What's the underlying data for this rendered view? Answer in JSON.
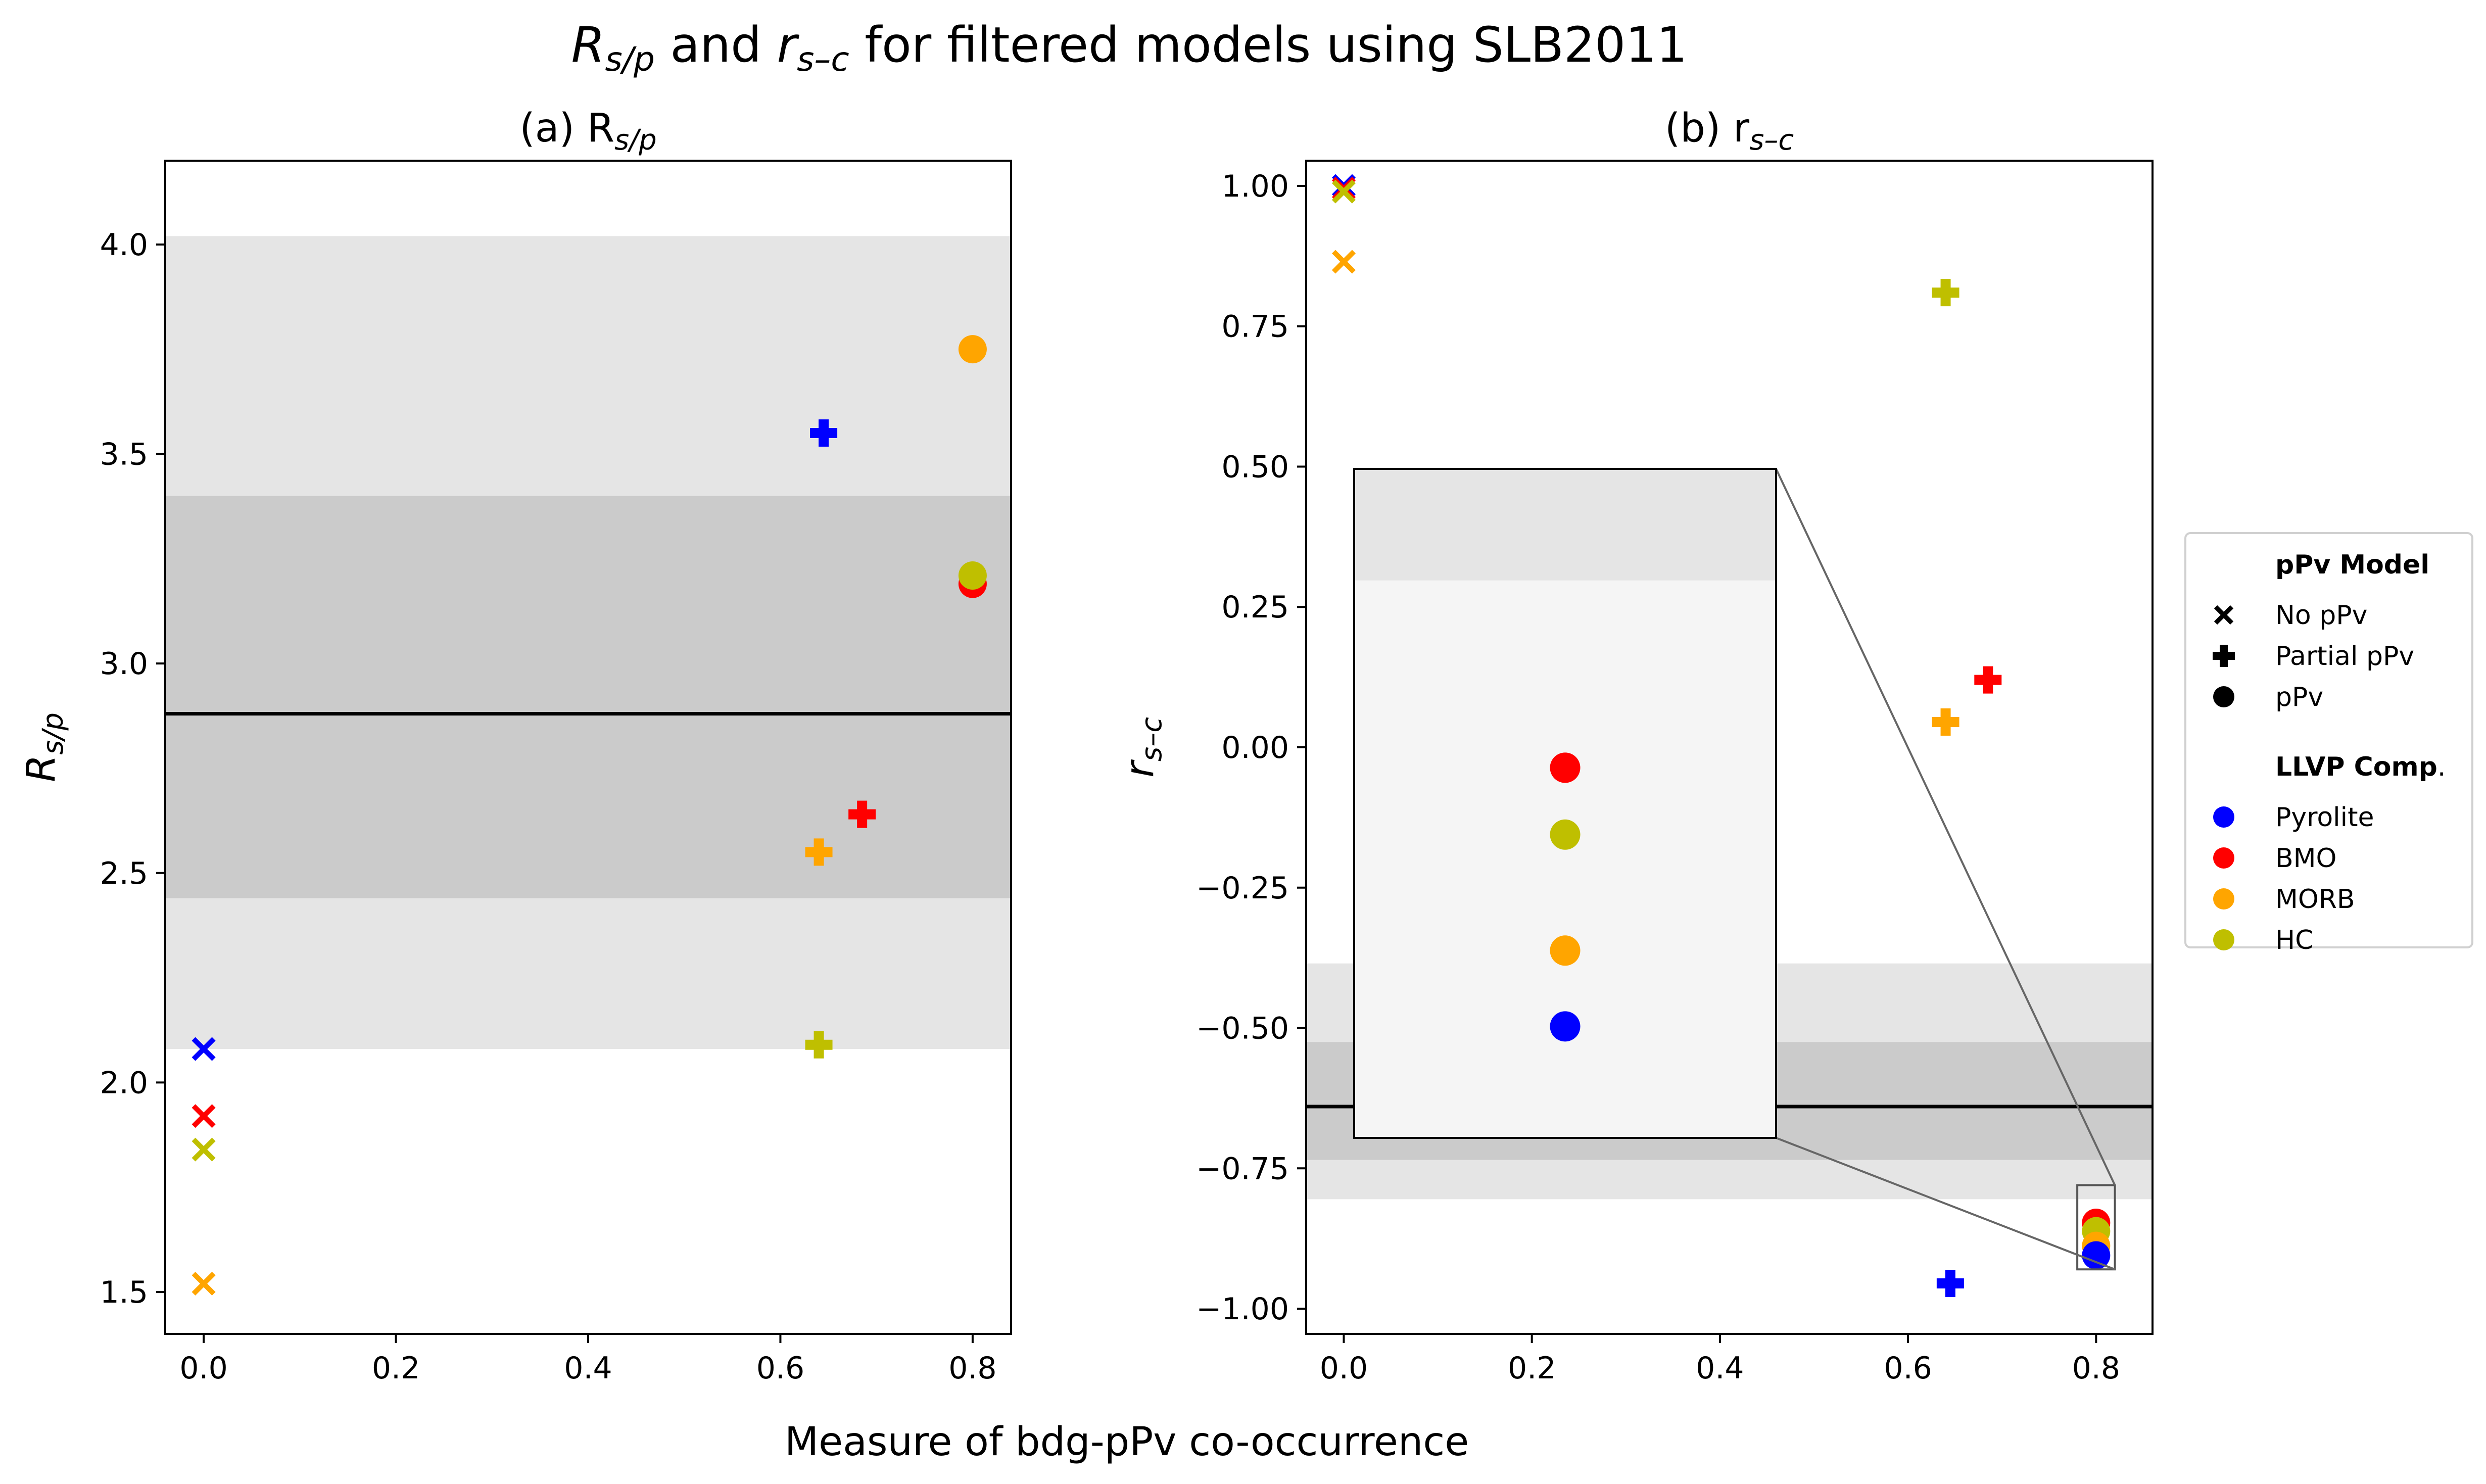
{
  "figure": {
    "title_parts": [
      {
        "text": "R",
        "italic": true
      },
      {
        "text": "s/p",
        "italic": true,
        "sub": true
      },
      {
        "text": " and ",
        "italic": false
      },
      {
        "text": "r",
        "italic": true
      },
      {
        "text": "s–c",
        "italic": true,
        "sub": true
      },
      {
        "text": " for filtered models using SLB2011",
        "italic": false
      }
    ],
    "shared_xlabel": "Measure of bdg-pPv co-occurrence"
  },
  "colors": {
    "Pyrolite": "#0000ff",
    "BMO": "#ff0000",
    "MORB": "#ffa500",
    "HC": "#bfbf00",
    "band_light": "#e5e5e5",
    "band_dark": "#cbcbcb",
    "inset_bg": "#f5f5f5"
  },
  "legend": {
    "marker_title": "pPv Model",
    "marker_items": [
      {
        "label": "No pPv",
        "marker": "x"
      },
      {
        "label": "Partial pPv",
        "marker": "plus"
      },
      {
        "label": "pPv",
        "marker": "circle"
      }
    ],
    "comp_title": "LLVP Comp",
    "comp_title_suffix": ".",
    "comp_items": [
      "Pyrolite",
      "BMO",
      "MORB",
      "HC"
    ]
  },
  "chart_data": [
    {
      "type": "scatter",
      "panel": "a",
      "title": "(a) R",
      "title_sub": "s/p",
      "ylabel": "R",
      "ylabel_sub": "s/p",
      "xlim": [
        -0.04,
        0.84
      ],
      "ylim": [
        1.4,
        4.2
      ],
      "xticks": [
        "0.0",
        "0.2",
        "0.4",
        "0.6",
        "0.8"
      ],
      "xtick_values": [
        0,
        0.2,
        0.4,
        0.6,
        0.8
      ],
      "yticks": [
        "1.5",
        "2.0",
        "2.5",
        "3.0",
        "3.5",
        "4.0"
      ],
      "ytick_values": [
        1.5,
        2.0,
        2.5,
        3.0,
        3.5,
        4.0
      ],
      "reference_line": 2.88,
      "band_outer": [
        2.08,
        4.02
      ],
      "band_inner": [
        2.44,
        3.4
      ],
      "points": [
        {
          "comp": "Pyrolite",
          "model": "No pPv",
          "x": 0.0,
          "y": 2.08
        },
        {
          "comp": "BMO",
          "model": "No pPv",
          "x": 0.0,
          "y": 1.92
        },
        {
          "comp": "HC",
          "model": "No pPv",
          "x": 0.0,
          "y": 1.84
        },
        {
          "comp": "MORB",
          "model": "No pPv",
          "x": 0.0,
          "y": 1.52
        },
        {
          "comp": "Pyrolite",
          "model": "Partial pPv",
          "x": 0.645,
          "y": 3.55
        },
        {
          "comp": "BMO",
          "model": "Partial pPv",
          "x": 0.685,
          "y": 2.64
        },
        {
          "comp": "MORB",
          "model": "Partial pPv",
          "x": 0.64,
          "y": 2.55
        },
        {
          "comp": "HC",
          "model": "Partial pPv",
          "x": 0.64,
          "y": 2.09
        },
        {
          "comp": "MORB",
          "model": "pPv",
          "x": 0.8,
          "y": 3.75
        },
        {
          "comp": "BMO",
          "model": "pPv",
          "x": 0.8,
          "y": 3.19
        },
        {
          "comp": "HC",
          "model": "pPv",
          "x": 0.8,
          "y": 3.21
        }
      ]
    },
    {
      "type": "scatter",
      "panel": "b",
      "title": "(b) r",
      "title_sub": "s–c",
      "ylabel": "r",
      "ylabel_sub": "s–c",
      "xlim": [
        -0.04,
        0.86
      ],
      "ylim": [
        -1.045,
        1.045
      ],
      "xticks": [
        "0.0",
        "0.2",
        "0.4",
        "0.6",
        "0.8"
      ],
      "xtick_values": [
        0,
        0.2,
        0.4,
        0.6,
        0.8
      ],
      "yticks": [
        "1.00",
        "0.75",
        "0.50",
        "0.25",
        "0.00",
        "−0.25",
        "−0.50",
        "−0.75",
        "−1.00"
      ],
      "ytick_values": [
        1.0,
        0.75,
        0.5,
        0.25,
        0.0,
        -0.25,
        -0.5,
        -0.75,
        -1.0
      ],
      "reference_line": -0.64,
      "band_outer": [
        -0.805,
        -0.385
      ],
      "band_inner": [
        -0.735,
        -0.525
      ],
      "points": [
        {
          "comp": "Pyrolite",
          "model": "No pPv",
          "x": 0.0,
          "y": 1.0
        },
        {
          "comp": "BMO",
          "model": "No pPv",
          "x": 0.0,
          "y": 0.995
        },
        {
          "comp": "HC",
          "model": "No pPv",
          "x": 0.0,
          "y": 0.99
        },
        {
          "comp": "MORB",
          "model": "No pPv",
          "x": 0.0,
          "y": 0.865
        },
        {
          "comp": "HC",
          "model": "Partial pPv",
          "x": 0.64,
          "y": 0.81
        },
        {
          "comp": "BMO",
          "model": "Partial pPv",
          "x": 0.685,
          "y": 0.12
        },
        {
          "comp": "MORB",
          "model": "Partial pPv",
          "x": 0.64,
          "y": 0.045
        },
        {
          "comp": "Pyrolite",
          "model": "Partial pPv",
          "x": 0.645,
          "y": -0.955
        },
        {
          "comp": "BMO",
          "model": "pPv",
          "x": 0.8,
          "y": -0.847
        },
        {
          "comp": "HC",
          "model": "pPv",
          "x": 0.8,
          "y": -0.862
        },
        {
          "comp": "MORB",
          "model": "pPv",
          "x": 0.8,
          "y": -0.888
        },
        {
          "comp": "Pyrolite",
          "model": "pPv",
          "x": 0.8,
          "y": -0.905
        }
      ],
      "zoom_inset": {
        "source_xlim": [
          0.78,
          0.82
        ],
        "source_ylim": [
          -0.93,
          -0.78
        ],
        "inset_xlim": [
          0.78,
          0.82
        ],
        "inset_ylim": [
          -0.93,
          -0.78
        ],
        "points": [
          {
            "comp": "BMO",
            "x": 0.8,
            "y": -0.847
          },
          {
            "comp": "HC",
            "x": 0.8,
            "y": -0.862
          },
          {
            "comp": "MORB",
            "x": 0.8,
            "y": -0.888
          },
          {
            "comp": "Pyrolite",
            "x": 0.8,
            "y": -0.905
          }
        ]
      }
    }
  ]
}
